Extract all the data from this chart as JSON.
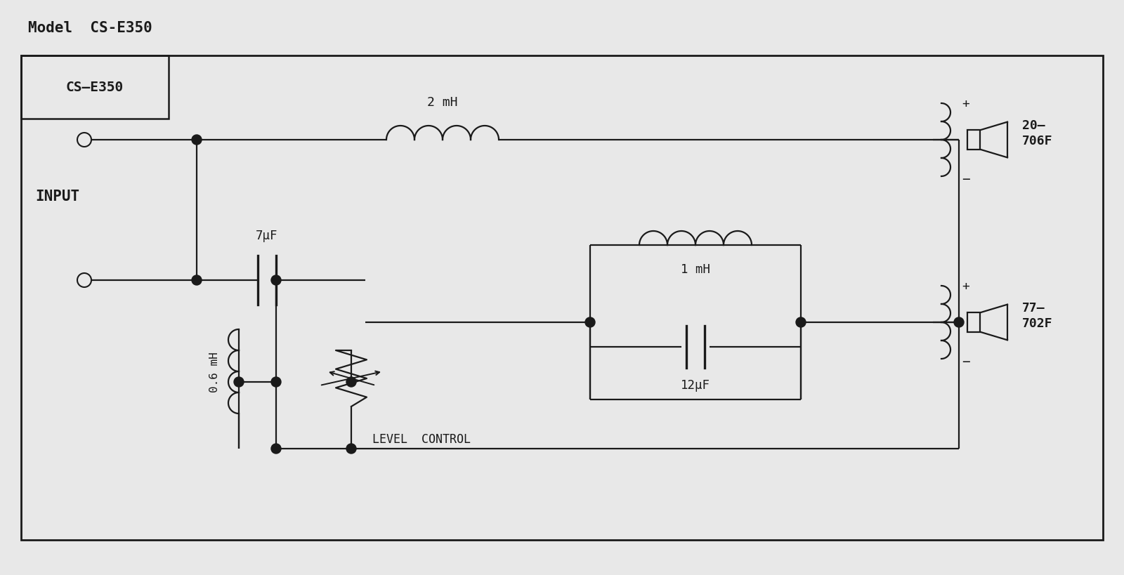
{
  "title": "Model  CS-E350",
  "label_cse350": "CS–E350",
  "label_input": "INPUT",
  "label_2mh": "2 mH",
  "label_7uf": "7μF",
  "label_06mh": "0.6 mH",
  "label_1mh": "1 mH",
  "label_12uf": "12μF",
  "label_level": "LEVEL  CONTROL",
  "label_20706f": "20–\n706F",
  "label_77702f": "77–\n702F",
  "bg_color": "#e8e8e8",
  "fg_color": "#1a1a1a",
  "line_width": 1.6,
  "font_size": 13
}
